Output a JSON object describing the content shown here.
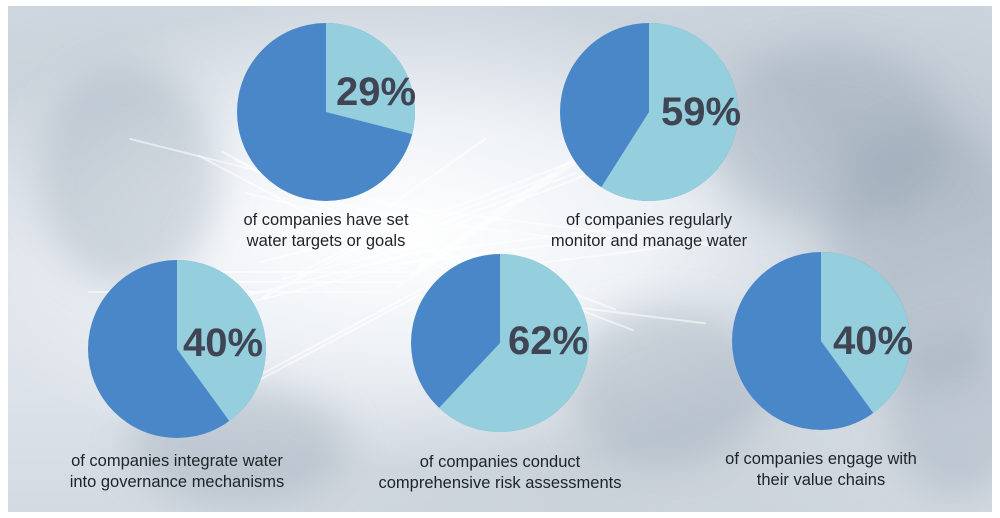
{
  "colors": {
    "dark": "#4a87c9",
    "light": "#95cfdd",
    "percent_text": "#3f4552",
    "caption_text": "#1f2328"
  },
  "chart_data": [
    {
      "type": "pie",
      "value_percent": 29,
      "label": "29%",
      "caption_lines": [
        "of companies have set",
        "water targets or goals"
      ]
    },
    {
      "type": "pie",
      "value_percent": 59,
      "label": "59%",
      "caption_lines": [
        "of companies regularly",
        "monitor and manage water"
      ]
    },
    {
      "type": "pie",
      "value_percent": 40,
      "label": "40%",
      "caption_lines": [
        "of companies integrate water",
        "into governance mechanisms"
      ]
    },
    {
      "type": "pie",
      "value_percent": 62,
      "label": "62%",
      "caption_lines": [
        "of companies conduct",
        "comprehensive risk assessments"
      ]
    },
    {
      "type": "pie",
      "value_percent": 40,
      "label": "40%",
      "caption_lines": [
        "of companies engage with",
        "their value chains"
      ]
    }
  ]
}
